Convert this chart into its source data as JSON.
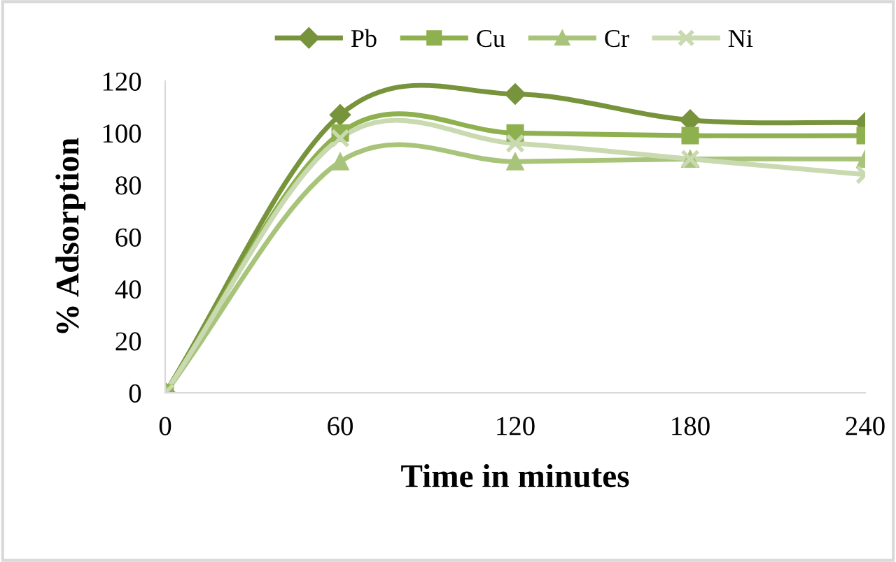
{
  "chart_data": {
    "type": "line",
    "xlabel": "Time in minutes",
    "ylabel": "% Adsorption",
    "x": [
      0,
      60,
      120,
      180,
      240
    ],
    "xlim": [
      0,
      240
    ],
    "xticks": [
      0,
      60,
      120,
      180,
      240
    ],
    "ylim": [
      0,
      120
    ],
    "yticks": [
      0,
      20,
      40,
      60,
      80,
      100,
      120
    ],
    "grid": false,
    "legend": "top",
    "series": [
      {
        "name": "Pb",
        "color": "#77933c",
        "marker": "diamond",
        "values": [
          0,
          107,
          115,
          105,
          104
        ]
      },
      {
        "name": "Cu",
        "color": "#8fb04e",
        "marker": "square",
        "values": [
          0,
          100,
          100,
          99,
          99
        ]
      },
      {
        "name": "Cr",
        "color": "#a8c47a",
        "marker": "triangle",
        "values": [
          0,
          89,
          89,
          90,
          90
        ]
      },
      {
        "name": "Ni",
        "color": "#c9d9b0",
        "marker": "cross",
        "values": [
          0,
          98,
          96,
          90,
          84
        ]
      }
    ]
  }
}
